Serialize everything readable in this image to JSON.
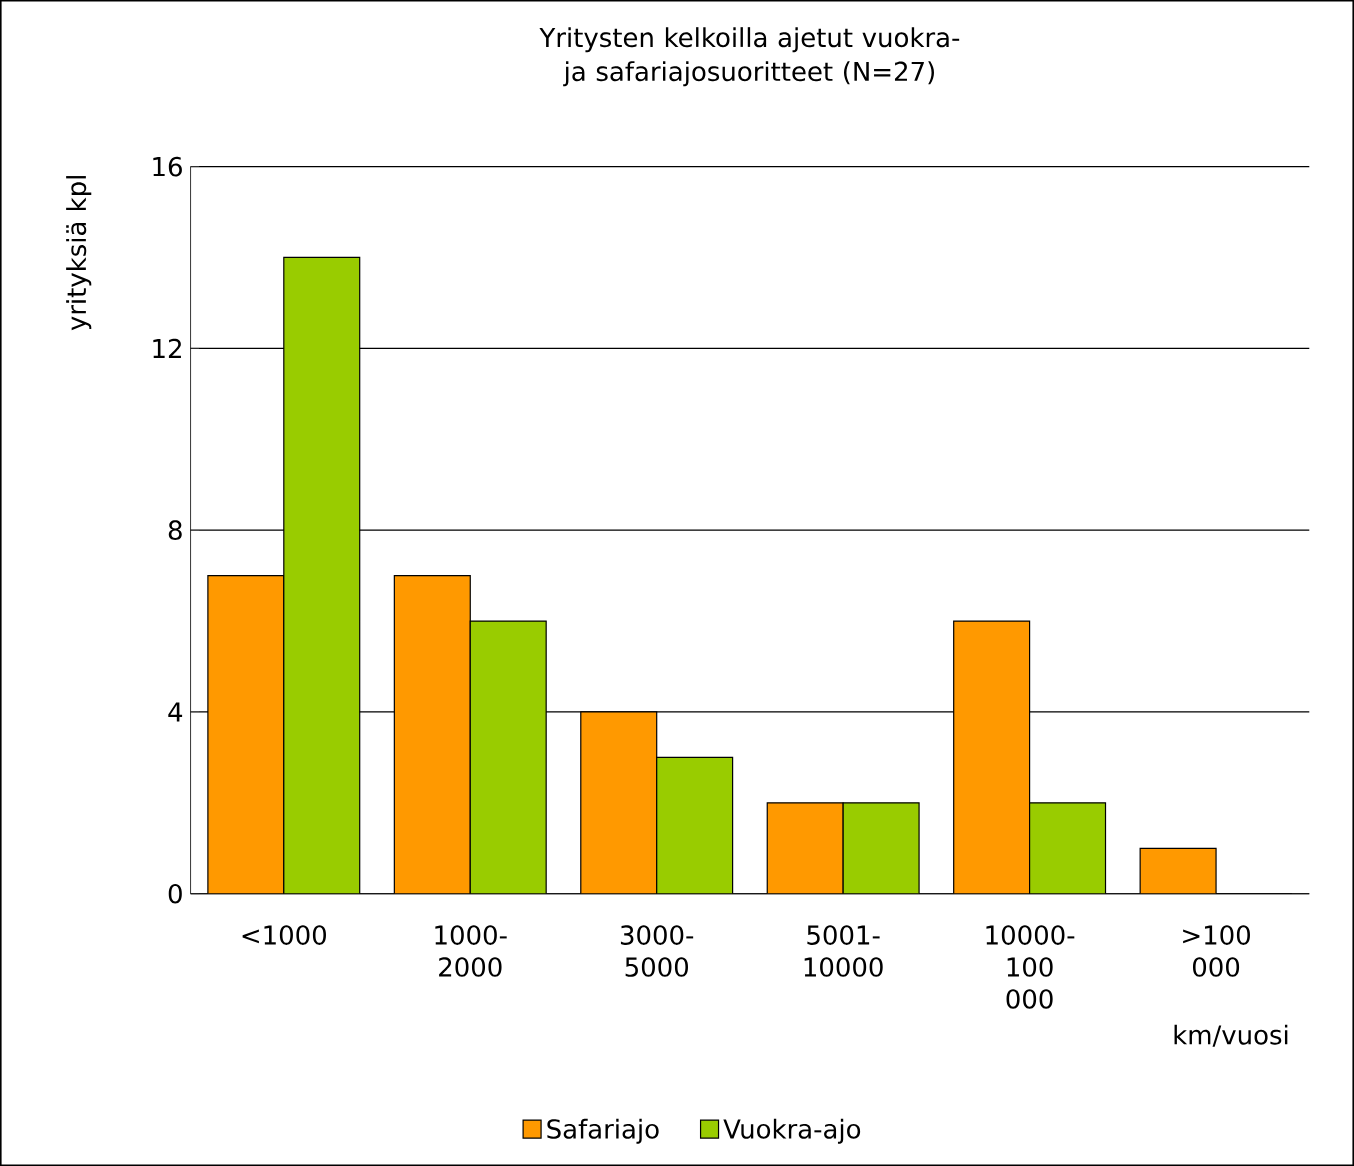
{
  "chart_data": {
    "type": "bar",
    "title": "Yritysten kelkoilla ajetut vuokra- ja safariajosuoritteet (N=27)",
    "xlabel": "km/vuosi",
    "ylabel": "yrityksiä kpl",
    "categories": [
      "<1000",
      "1000-2000",
      "3000-5000",
      "5001-10000",
      "10000-100 000",
      ">100 000"
    ],
    "series": [
      {
        "name": "Safariajo",
        "color": "#ff9900",
        "values": [
          7,
          7,
          4,
          2,
          6,
          1
        ]
      },
      {
        "name": "Vuokra-ajo",
        "color": "#99cc00",
        "values": [
          14,
          6,
          3,
          2,
          2,
          0
        ]
      }
    ],
    "ylim": [
      0,
      16
    ],
    "yticks": [
      0,
      4,
      8,
      12,
      16
    ],
    "grid": "y",
    "legend": "bottom"
  }
}
